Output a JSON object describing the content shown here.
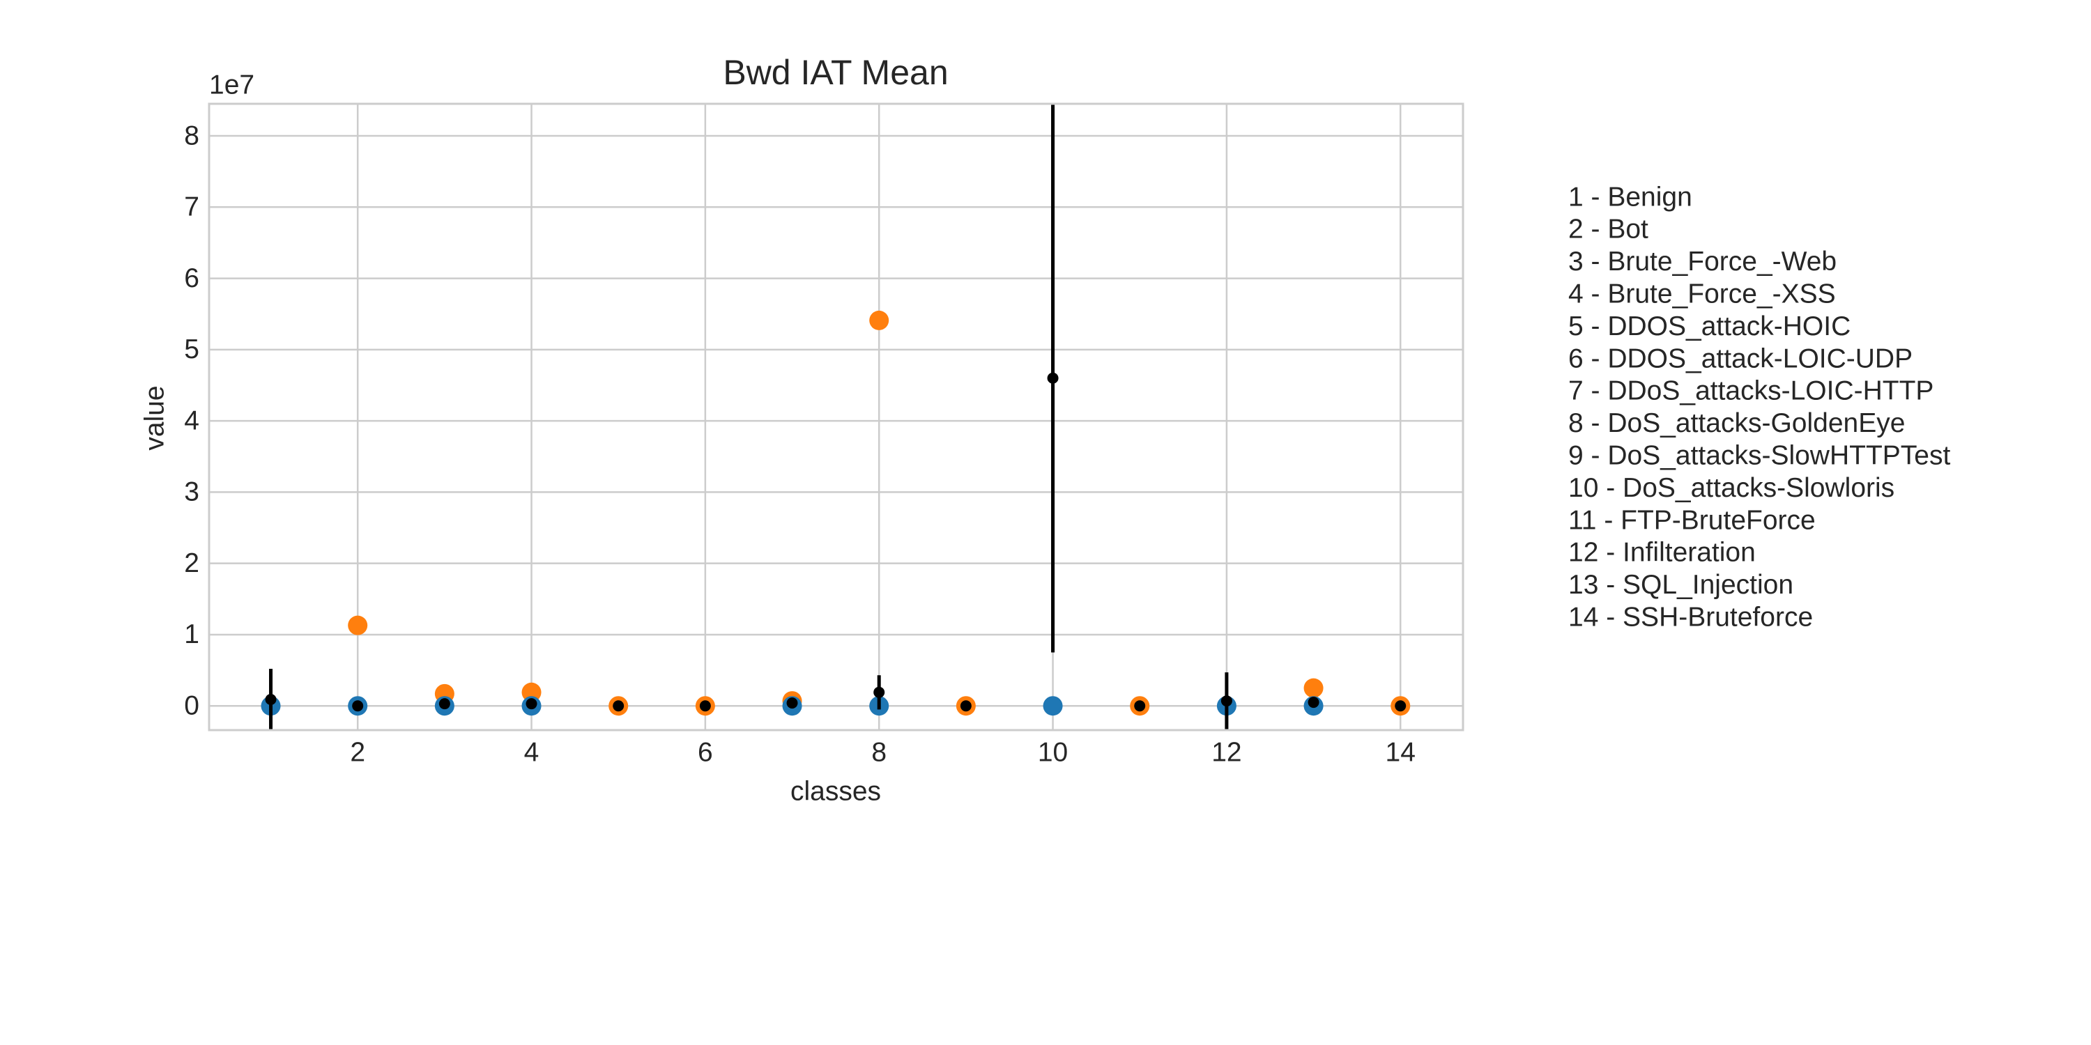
{
  "chart_data": {
    "type": "scatter",
    "title": "Bwd IAT Mean",
    "x_label": "classes",
    "y_label": "value",
    "y_offset_label": "1e7",
    "x": [
      1,
      2,
      3,
      4,
      5,
      6,
      7,
      8,
      9,
      10,
      11,
      12,
      13,
      14
    ],
    "series": [
      {
        "color": "#ff7f0e",
        "values": [
          null,
          1.13,
          0.17,
          0.19,
          0,
          0,
          0.07,
          5.41,
          0,
          null,
          0,
          null,
          0.25,
          0
        ]
      },
      {
        "color": "#1f77b4",
        "values": [
          0,
          0,
          0,
          0,
          null,
          null,
          0,
          0,
          null,
          0,
          null,
          0,
          0,
          null
        ]
      },
      {
        "color": "#000000",
        "values": [
          0.09,
          0,
          0.03,
          0.03,
          0,
          0,
          0.04,
          0.19,
          0,
          4.6,
          0,
          0.07,
          0.05,
          0
        ],
        "errors": [
          0.43,
          0,
          0,
          0,
          0,
          0,
          0,
          0.24,
          0,
          3.85,
          0,
          0.4,
          0,
          0
        ]
      }
    ],
    "xlim": [
      0.29,
      14.72
    ],
    "ylim": [
      -0.34,
      8.45
    ],
    "xticks": [
      2,
      4,
      6,
      8,
      10,
      12,
      14
    ],
    "yticks": [
      0,
      1,
      2,
      3,
      4,
      5,
      6,
      7,
      8
    ],
    "grid": true,
    "legend_items": [
      "1 - Benign",
      "2 - Bot",
      "3 - Brute_Force_-Web",
      "4 - Brute_Force_-XSS",
      "5 - DDOS_attack-HOIC",
      "6 - DDOS_attack-LOIC-UDP",
      "7 - DDoS_attacks-LOIC-HTTP",
      "8 - DoS_attacks-GoldenEye",
      "9 - DoS_attacks-SlowHTTPTest",
      "10 - DoS_attacks-Slowloris",
      "11 - FTP-BruteForce",
      "12 - Infilteration",
      "13 - SQL_Injection",
      "14 - SSH-Bruteforce"
    ]
  }
}
